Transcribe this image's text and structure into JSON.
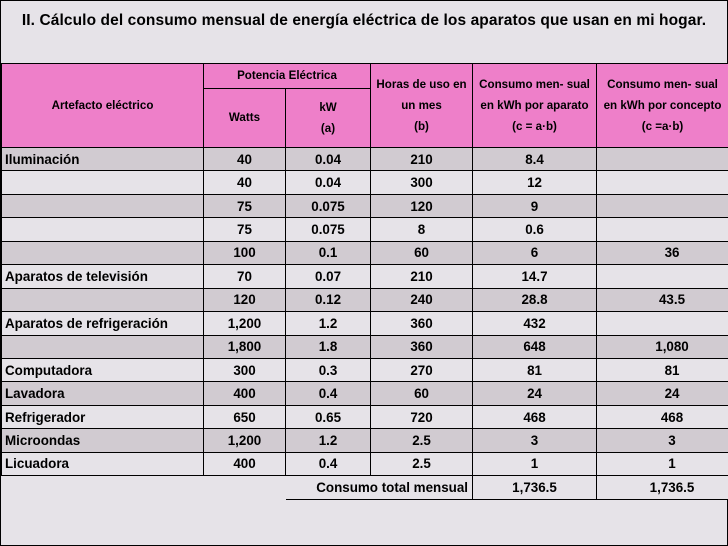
{
  "title": "II.  Cálculo del consumo mensual de energía eléctrica de los aparatos que usan en mi hogar.",
  "headers": {
    "artefacto": "Artefacto eléctrico",
    "potencia": "Potencia Eléctrica",
    "watts": "Watts",
    "kw": "kW",
    "kw_sub": "(a)",
    "horas": "Horas de uso en un mes",
    "horas_sub": "(b)",
    "consumo_aparato": "Consumo men- sual en kWh por aparato (c = a·b)",
    "consumo_concepto": "Consumo men- sual en kWh por concepto (c =a·b)"
  },
  "rows": [
    {
      "name": "Iluminación",
      "watts": "40",
      "kw": "0.04",
      "horas": "210",
      "aparato": "8.4",
      "concepto": ""
    },
    {
      "name": "",
      "watts": "40",
      "kw": "0.04",
      "horas": "300",
      "aparato": "12",
      "concepto": ""
    },
    {
      "name": "",
      "watts": "75",
      "kw": "0.075",
      "horas": "120",
      "aparato": "9",
      "concepto": ""
    },
    {
      "name": "",
      "watts": "75",
      "kw": "0.075",
      "horas": "8",
      "aparato": "0.6",
      "concepto": ""
    },
    {
      "name": "",
      "watts": "100",
      "kw": "0.1",
      "horas": "60",
      "aparato": "6",
      "concepto": "36"
    },
    {
      "name": "Aparatos de televisión",
      "watts": "70",
      "kw": "0.07",
      "horas": "210",
      "aparato": "14.7",
      "concepto": ""
    },
    {
      "name": "",
      "watts": "120",
      "kw": "0.12",
      "horas": "240",
      "aparato": "28.8",
      "concepto": "43.5"
    },
    {
      "name": "Aparatos de refrigeración",
      "watts": "1,200",
      "kw": "1.2",
      "horas": "360",
      "aparato": "432",
      "concepto": ""
    },
    {
      "name": "",
      "watts": "1,800",
      "kw": "1.8",
      "horas": "360",
      "aparato": "648",
      "concepto": "1,080"
    },
    {
      "name": "Computadora",
      "watts": "300",
      "kw": "0.3",
      "horas": "270",
      "aparato": "81",
      "concepto": "81"
    },
    {
      "name": "Lavadora",
      "watts": "400",
      "kw": "0.4",
      "horas": "60",
      "aparato": "24",
      "concepto": "24"
    },
    {
      "name": "Refrigerador",
      "watts": "650",
      "kw": "0.65",
      "horas": "720",
      "aparato": "468",
      "concepto": "468"
    },
    {
      "name": "Microondas",
      "watts": "1,200",
      "kw": "1.2",
      "horas": "2.5",
      "aparato": "3",
      "concepto": "3"
    },
    {
      "name": "Licuadora",
      "watts": "400",
      "kw": "0.4",
      "horas": "2.5",
      "aparato": "1",
      "concepto": "1"
    }
  ],
  "total": {
    "label": "Consumo total mensual",
    "aparato": "1,736.5",
    "concepto": "1,736.5"
  },
  "colors": {
    "header_pink": "#ee7fc9",
    "row_light": "#e6e3e8",
    "row_dark": "#d1cbd1"
  }
}
